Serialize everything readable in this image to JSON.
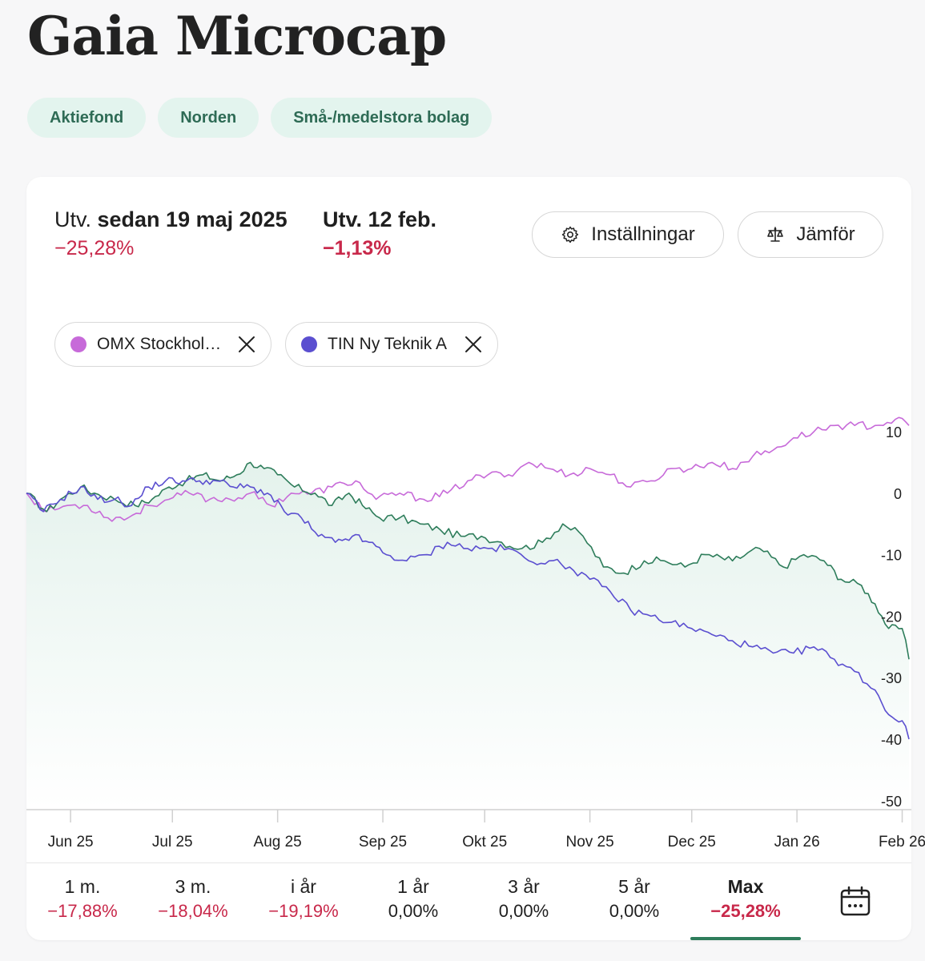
{
  "page": {
    "title": "Gaia Microcap"
  },
  "tags": [
    "Aktiefond",
    "Norden",
    "Små-/medelstora bolag"
  ],
  "summary": {
    "since_prefix": "Utv.",
    "since_label": "sedan 19 maj 2025",
    "since_value": "−25,28%",
    "day_label": "Utv. 12 feb.",
    "day_value": "−1,13%"
  },
  "buttons": {
    "settings": "Inställningar",
    "compare": "Jämför"
  },
  "compare_chips": [
    {
      "label": "OMX Stockhol…",
      "color": "#c76ad9"
    },
    {
      "label": "TIN Ny Teknik A",
      "color": "#5b4fd0"
    }
  ],
  "periods": [
    {
      "label": "1 m.",
      "value": "−17,88%"
    },
    {
      "label": "3 m.",
      "value": "−18,04%"
    },
    {
      "label": "i år",
      "value": "−19,19%"
    },
    {
      "label": "1 år",
      "value": "0,00%"
    },
    {
      "label": "3 år",
      "value": "0,00%"
    },
    {
      "label": "5 år",
      "value": "0,00%"
    },
    {
      "label": "Max",
      "value": "−25,28%"
    }
  ],
  "chart_data": {
    "type": "line",
    "x_range": [
      "2025-05-19",
      "2026-02-12"
    ],
    "ylim": [
      -50,
      15
    ],
    "yticks": [
      10,
      0,
      -10,
      -20,
      -30,
      -40,
      -50
    ],
    "xticks": [
      {
        "label": "Jun 25",
        "day": 13
      },
      {
        "label": "Jul 25",
        "day": 43
      },
      {
        "label": "Aug 25",
        "day": 74
      },
      {
        "label": "Sep 25",
        "day": 105
      },
      {
        "label": "Okt 25",
        "day": 135
      },
      {
        "label": "Nov 25",
        "day": 166
      },
      {
        "label": "Dec 25",
        "day": 196
      },
      {
        "label": "Jan 26",
        "day": 227
      },
      {
        "label": "Feb 26",
        "day": 258
      }
    ],
    "series": [
      {
        "name": "Gaia Microcap",
        "color": "#2e7d5b",
        "filled": true,
        "points": [
          [
            0,
            0
          ],
          [
            6,
            -3
          ],
          [
            10,
            -1
          ],
          [
            16,
            1
          ],
          [
            20,
            0
          ],
          [
            26,
            -1
          ],
          [
            32,
            -2
          ],
          [
            37,
            -1
          ],
          [
            42,
            1
          ],
          [
            47,
            2
          ],
          [
            52,
            3
          ],
          [
            57,
            2
          ],
          [
            62,
            3
          ],
          [
            66,
            5
          ],
          [
            70,
            4
          ],
          [
            74,
            3
          ],
          [
            79,
            1
          ],
          [
            85,
            0
          ],
          [
            90,
            -2
          ],
          [
            95,
            0
          ],
          [
            99,
            -2
          ],
          [
            104,
            -4
          ],
          [
            110,
            -4
          ],
          [
            116,
            -5
          ],
          [
            122,
            -6
          ],
          [
            128,
            -7
          ],
          [
            134,
            -7
          ],
          [
            140,
            -8
          ],
          [
            146,
            -9
          ],
          [
            152,
            -8
          ],
          [
            158,
            -5
          ],
          [
            164,
            -7
          ],
          [
            170,
            -12
          ],
          [
            176,
            -13
          ],
          [
            182,
            -11
          ],
          [
            188,
            -11
          ],
          [
            194,
            -12
          ],
          [
            200,
            -10
          ],
          [
            208,
            -11
          ],
          [
            216,
            -9
          ],
          [
            223,
            -12
          ],
          [
            229,
            -10
          ],
          [
            235,
            -11
          ],
          [
            240,
            -14
          ],
          [
            246,
            -15
          ],
          [
            250,
            -18
          ],
          [
            254,
            -22
          ],
          [
            258,
            -22
          ],
          [
            260,
            -27
          ]
        ]
      },
      {
        "name": "OMX Stockholm",
        "color": "#c76ad9",
        "points": [
          [
            0,
            0
          ],
          [
            6,
            -3
          ],
          [
            12,
            -2
          ],
          [
            18,
            -2
          ],
          [
            24,
            -4
          ],
          [
            30,
            -4
          ],
          [
            36,
            -2
          ],
          [
            42,
            -1
          ],
          [
            48,
            0
          ],
          [
            54,
            -1
          ],
          [
            60,
            -1
          ],
          [
            66,
            0
          ],
          [
            72,
            -2
          ],
          [
            78,
            0
          ],
          [
            84,
            0
          ],
          [
            90,
            1
          ],
          [
            97,
            2
          ],
          [
            103,
            -1
          ],
          [
            110,
            0
          ],
          [
            117,
            -1
          ],
          [
            124,
            0
          ],
          [
            130,
            2
          ],
          [
            136,
            3
          ],
          [
            142,
            3
          ],
          [
            148,
            5
          ],
          [
            154,
            4
          ],
          [
            160,
            3
          ],
          [
            166,
            4
          ],
          [
            172,
            3
          ],
          [
            178,
            1
          ],
          [
            184,
            2
          ],
          [
            190,
            4
          ],
          [
            196,
            4
          ],
          [
            202,
            5
          ],
          [
            208,
            4
          ],
          [
            214,
            6
          ],
          [
            220,
            7
          ],
          [
            226,
            9
          ],
          [
            232,
            10
          ],
          [
            238,
            11
          ],
          [
            244,
            11
          ],
          [
            250,
            11
          ],
          [
            256,
            12
          ],
          [
            260,
            11
          ]
        ]
      },
      {
        "name": "TIN Ny Teknik A",
        "color": "#5b4fd0",
        "points": [
          [
            0,
            0
          ],
          [
            5,
            -3
          ],
          [
            10,
            -1
          ],
          [
            16,
            1
          ],
          [
            21,
            -1
          ],
          [
            26,
            -1
          ],
          [
            31,
            -2
          ],
          [
            36,
            1
          ],
          [
            41,
            2
          ],
          [
            46,
            2
          ],
          [
            51,
            2
          ],
          [
            56,
            2
          ],
          [
            61,
            1
          ],
          [
            66,
            1
          ],
          [
            71,
            0
          ],
          [
            76,
            -3
          ],
          [
            81,
            -4
          ],
          [
            86,
            -7
          ],
          [
            91,
            -8
          ],
          [
            96,
            -7
          ],
          [
            101,
            -8
          ],
          [
            106,
            -10
          ],
          [
            112,
            -11
          ],
          [
            118,
            -10
          ],
          [
            124,
            -8
          ],
          [
            130,
            -9
          ],
          [
            136,
            -9
          ],
          [
            142,
            -9
          ],
          [
            148,
            -11
          ],
          [
            154,
            -11
          ],
          [
            160,
            -12
          ],
          [
            166,
            -14
          ],
          [
            172,
            -16
          ],
          [
            178,
            -19
          ],
          [
            184,
            -20
          ],
          [
            190,
            -21
          ],
          [
            196,
            -22
          ],
          [
            202,
            -23
          ],
          [
            208,
            -24
          ],
          [
            214,
            -25
          ],
          [
            220,
            -26
          ],
          [
            226,
            -26
          ],
          [
            232,
            -25
          ],
          [
            238,
            -27
          ],
          [
            244,
            -29
          ],
          [
            250,
            -32
          ],
          [
            254,
            -36
          ],
          [
            258,
            -37
          ],
          [
            260,
            -40
          ]
        ]
      }
    ]
  }
}
